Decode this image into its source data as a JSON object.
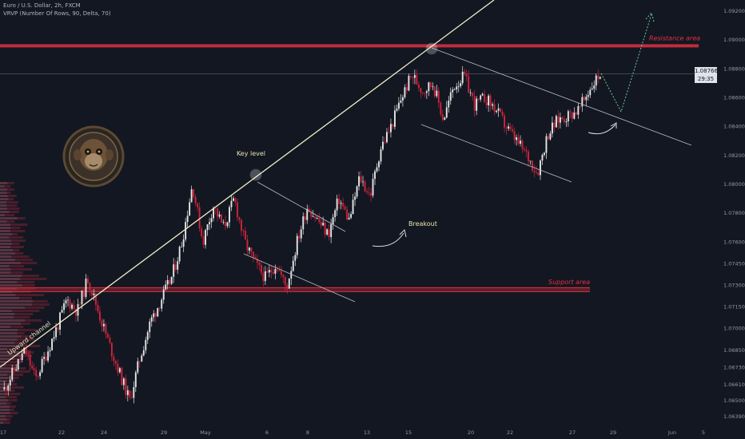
{
  "header": {
    "symbol_line": "Euro / U.S. Dollar, 2h, FXCM",
    "indicator_line": "VRVP (Number Of Rows, 90, Delta, 70)"
  },
  "last_price": {
    "value": "1.08766",
    "countdown": "29:35"
  },
  "colors": {
    "background": "#131722",
    "bull": "#e6e6e6",
    "bear": "#d0243a",
    "zone": "#e0303f",
    "trendline": "#f3efc4",
    "channel": "#b8bcc4",
    "forecast": "#6fc69a"
  },
  "chart_data": {
    "type": "candlestick",
    "symbol": "EURUSD",
    "timeframe": "2h",
    "y_ticks": [
      "1.09200",
      "1.09000",
      "1.08800",
      "1.08600",
      "1.08400",
      "1.08200",
      "1.08000",
      "1.07800",
      "1.07600",
      "1.07450",
      "1.07300",
      "1.07150",
      "1.07000",
      "1.06850",
      "1.06730",
      "1.06610",
      "1.06500",
      "1.06390"
    ],
    "x_ticks": [
      "17",
      "22",
      "24",
      "29",
      "May",
      "6",
      "8",
      "13",
      "15",
      "20",
      "22",
      "27",
      "29",
      "Jun",
      "5"
    ],
    "close_path": [
      1.0658,
      1.0672,
      1.0685,
      1.0665,
      1.0682,
      1.07,
      1.072,
      1.0712,
      1.0735,
      1.0712,
      1.069,
      1.067,
      1.065,
      1.068,
      1.0705,
      1.072,
      1.0735,
      1.076,
      1.08,
      1.076,
      1.0785,
      1.077,
      1.079,
      1.076,
      1.0745,
      1.0735,
      1.0745,
      1.0728,
      1.076,
      1.0785,
      1.0775,
      1.0765,
      1.079,
      1.0775,
      1.0805,
      1.0792,
      1.0825,
      1.084,
      1.086,
      1.0876,
      1.0865,
      1.087,
      1.0845,
      1.0868,
      1.0875,
      1.0855,
      1.086,
      1.0852,
      1.084,
      1.083,
      1.082,
      1.0808,
      1.0835,
      1.0845,
      1.0848,
      1.0852,
      1.0866,
      1.0877
    ],
    "resistance_area": {
      "label": "Resistance area",
      "level": 1.0896
    },
    "support_area": {
      "label": "Support area",
      "level": 1.0727
    },
    "annotations": [
      "Key level",
      "Breakout",
      "Upward channel"
    ]
  }
}
